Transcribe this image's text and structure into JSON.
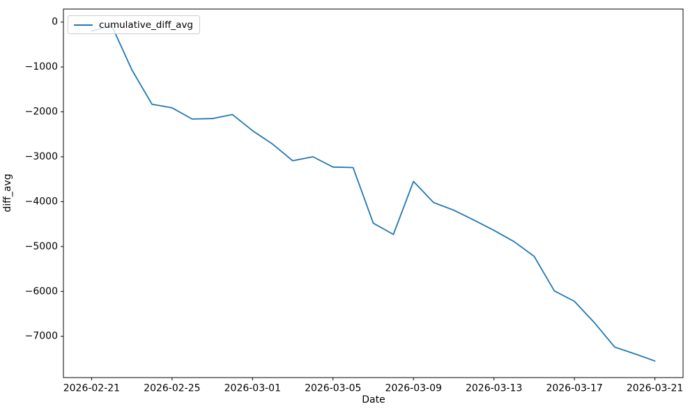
{
  "chart_data": {
    "type": "line",
    "title": "",
    "xlabel": "Date",
    "ylabel": "diff_avg",
    "grid": false,
    "legend_position": "upper left",
    "line_color": "#1f77b4",
    "spine_color": "#000000",
    "x": [
      "2026-02-21",
      "2026-02-22",
      "2026-02-23",
      "2026-02-24",
      "2026-02-25",
      "2026-02-26",
      "2026-02-27",
      "2026-02-28",
      "2026-03-01",
      "2026-03-02",
      "2026-03-03",
      "2026-03-04",
      "2026-03-05",
      "2026-03-06",
      "2026-03-07",
      "2026-03-08",
      "2026-03-09",
      "2026-03-10",
      "2026-03-11",
      "2026-03-12",
      "2026-03-13",
      "2026-03-14",
      "2026-03-15",
      "2026-03-16",
      "2026-03-17",
      "2026-03-18",
      "2026-03-19",
      "2026-03-20",
      "2026-03-21"
    ],
    "series": [
      {
        "name": "cumulative_diff_avg",
        "values": [
          -200,
          -80,
          -1060,
          -1830,
          -1910,
          -2160,
          -2150,
          -2060,
          -2420,
          -2720,
          -3090,
          -3000,
          -3230,
          -3240,
          -4480,
          -4730,
          -3550,
          -4020,
          -4190,
          -4410,
          -4640,
          -4890,
          -5220,
          -5990,
          -6220,
          -6700,
          -7240,
          -7390,
          -7550
        ]
      }
    ],
    "x_tick_indices": [
      0,
      4,
      8,
      12,
      16,
      20,
      24,
      28
    ],
    "x_tick_labels": [
      "2026-02-21",
      "2026-02-25",
      "2026-03-01",
      "2026-03-05",
      "2026-03-09",
      "2026-03-13",
      "2026-03-17",
      "2026-03-21"
    ],
    "y_ticks": [
      0,
      -1000,
      -2000,
      -3000,
      -4000,
      -5000,
      -6000,
      -7000
    ],
    "y_tick_labels": [
      "0",
      "−1000",
      "−2000",
      "−3000",
      "−4000",
      "−5000",
      "−6000",
      "−7000"
    ],
    "xlim_day_index": [
      -1.4,
      29.4
    ],
    "ylim": [
      -7920,
      290
    ]
  }
}
